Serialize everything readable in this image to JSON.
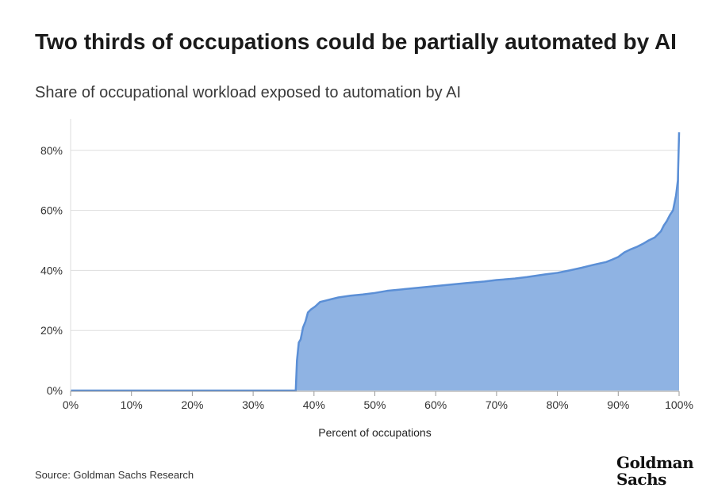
{
  "header": {
    "title": "Two thirds of occupations could be partially automated by AI",
    "subtitle": "Share of occupational workload exposed to automation by AI"
  },
  "footer": {
    "source": "Source: Goldman Sachs Research",
    "logo_line1": "Goldman",
    "logo_line2": "Sachs"
  },
  "colors": {
    "fill": "#8fb3e3",
    "line": "#5b8fd6",
    "grid": "#dddddd",
    "axis": "#999999"
  },
  "chart_data": {
    "type": "area",
    "title": "Two thirds of occupations could be partially automated by AI",
    "subtitle": "Share of occupational workload exposed to automation by AI",
    "xlabel": "Percent of occupations",
    "ylabel": "",
    "xlim": [
      0,
      100
    ],
    "ylim": [
      0,
      90
    ],
    "x_ticks": [
      "0%",
      "10%",
      "20%",
      "30%",
      "40%",
      "50%",
      "60%",
      "70%",
      "80%",
      "90%",
      "100%"
    ],
    "y_ticks": [
      "0%",
      "20%",
      "40%",
      "60%",
      "80%"
    ],
    "grid": true,
    "series": [
      {
        "x": [
          0,
          37.0,
          37.2,
          37.5,
          37.8,
          38.2,
          38.6,
          39.0,
          39.5,
          40.2,
          41,
          42,
          43,
          44,
          45,
          46,
          48,
          50,
          52,
          55,
          58,
          60,
          62,
          65,
          68,
          70,
          73,
          75,
          78,
          80,
          82,
          84,
          85,
          86,
          88,
          89,
          90,
          91,
          92,
          93,
          94,
          95,
          96,
          97,
          97.5,
          98,
          98.5,
          99,
          99.5,
          99.8,
          100
        ],
        "y": [
          0,
          0,
          10,
          16,
          17,
          21,
          23,
          26,
          27,
          28,
          29.5,
          30,
          30.5,
          31,
          31.3,
          31.6,
          32,
          32.5,
          33.2,
          33.8,
          34.4,
          34.8,
          35.2,
          35.8,
          36.3,
          36.8,
          37.3,
          37.8,
          38.7,
          39.2,
          40.0,
          40.9,
          41.4,
          41.9,
          42.8,
          43.6,
          44.5,
          46,
          47,
          47.8,
          48.8,
          50,
          51,
          53,
          55,
          56.5,
          58.5,
          60,
          65,
          70,
          86
        ]
      }
    ]
  }
}
